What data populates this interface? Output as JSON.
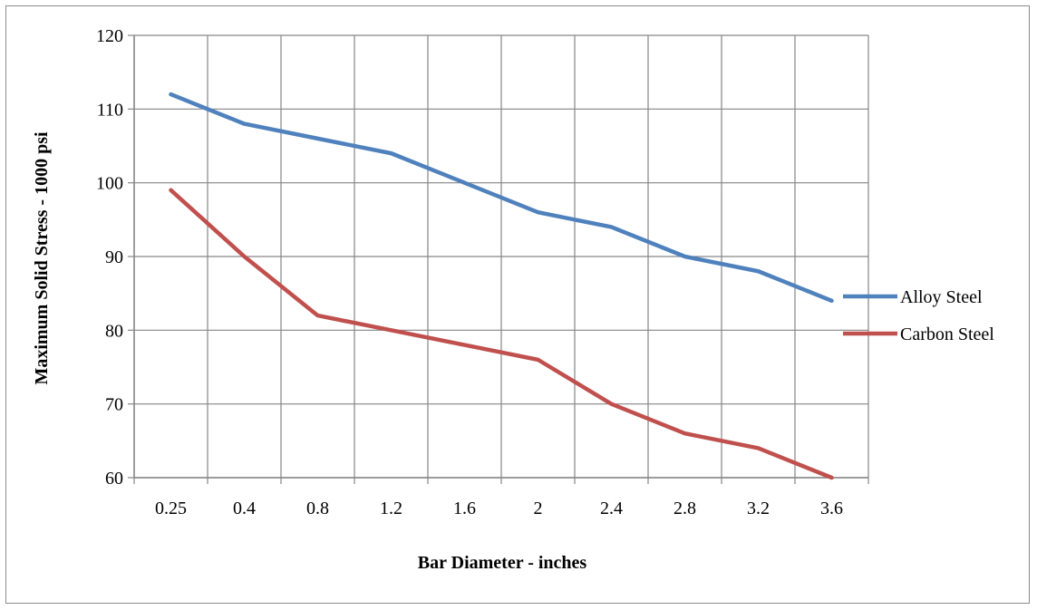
{
  "chart_data": {
    "type": "line",
    "title": "",
    "xlabel": "Bar Diameter - inches",
    "ylabel": "Maximum Solid Stress - 1000 psi",
    "categories": [
      "0.25",
      "0.4",
      "0.8",
      "1.2",
      "1.6",
      "2",
      "2.4",
      "2.8",
      "3.2",
      "3.6"
    ],
    "ylim": [
      60,
      120
    ],
    "yticks": [
      60,
      70,
      80,
      90,
      100,
      110,
      120
    ],
    "grid": true,
    "legend_position": "right",
    "series": [
      {
        "name": "Alloy Steel",
        "color": "#4f81bd",
        "values": [
          112,
          108,
          106,
          104,
          100,
          96,
          94,
          90,
          88,
          84
        ]
      },
      {
        "name": "Carbon Steel",
        "color": "#c0504d",
        "values": [
          99,
          90,
          82,
          80,
          78,
          76,
          70,
          66,
          64,
          60
        ]
      }
    ]
  }
}
